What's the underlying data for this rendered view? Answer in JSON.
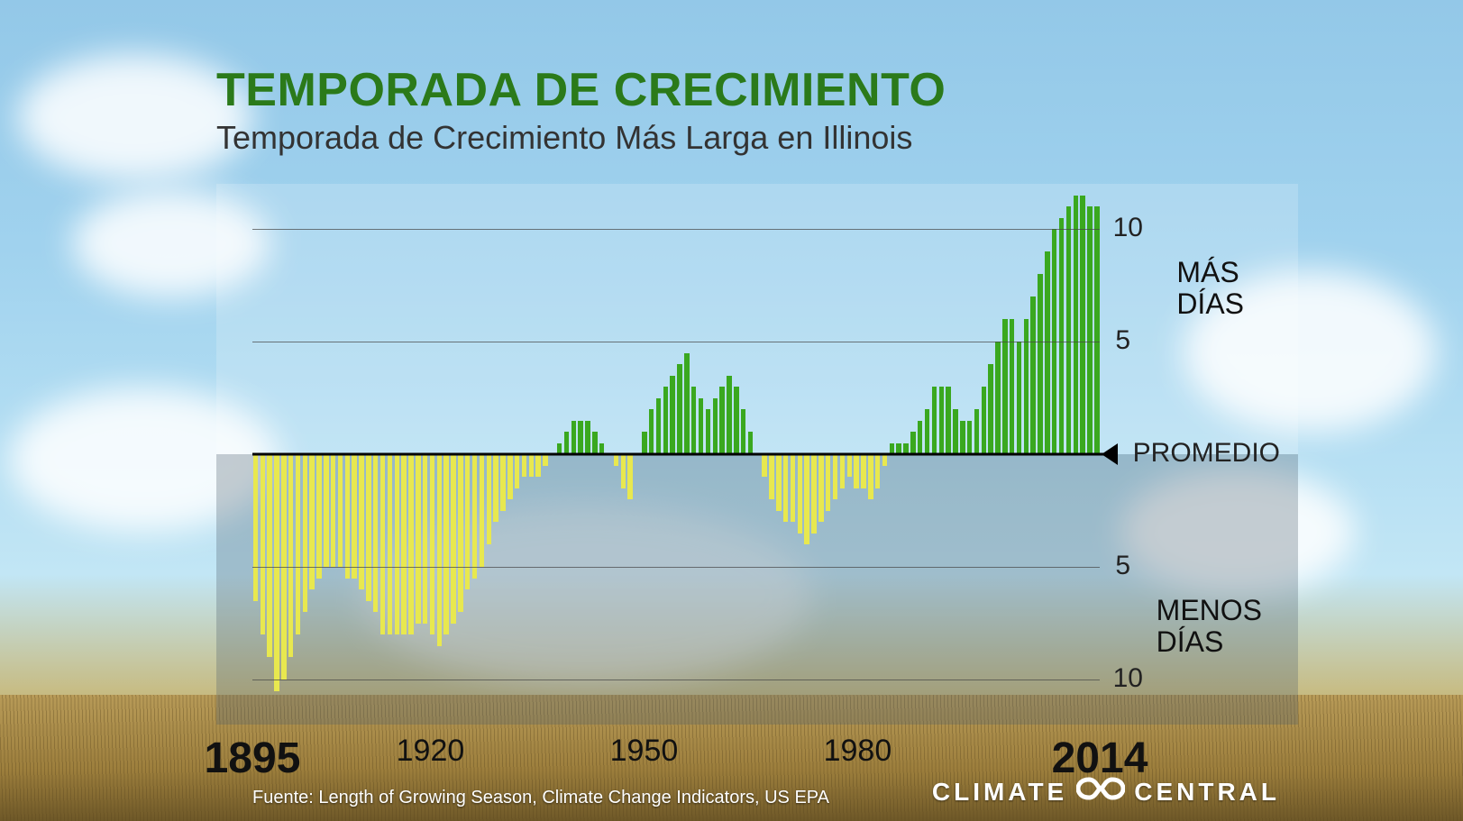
{
  "title": "TEMPORADA DE CRECIMIENTO",
  "subtitle": "Temporada de Crecimiento Más Larga en Illinois",
  "source": "Fuente: Length of Growing Season, Climate Change Indicators, US EPA",
  "brand_left": "CLIMATE",
  "brand_right": "CENTRAL",
  "chart": {
    "type": "bar",
    "y_axis": {
      "min": -12,
      "max": 12,
      "gridlines": [
        10,
        5,
        -5,
        -10
      ],
      "tick_labels_pos": [
        "10",
        "5"
      ],
      "tick_labels_neg": [
        "5",
        "10"
      ],
      "upper_label": "MÁS\nDÍAS",
      "lower_label": "MENOS\nDÍAS",
      "baseline_label": "PROMEDIO"
    },
    "x_axis": {
      "start_year": 1895,
      "end_year": 2014,
      "labels": [
        {
          "year": 1895,
          "text": "1895",
          "big": true
        },
        {
          "year": 1920,
          "text": "1920",
          "big": false
        },
        {
          "year": 1950,
          "text": "1950",
          "big": false
        },
        {
          "year": 1980,
          "text": "1980",
          "big": false
        },
        {
          "year": 2014,
          "text": "2014",
          "big": true
        }
      ]
    },
    "colors": {
      "positive_bar": "#3aa81f",
      "negative_bar": "#e8e84f",
      "title_color": "#2b7a1a",
      "subtitle_color": "#333333",
      "gridline_color": "#444444",
      "baseline_color": "#000000",
      "label_color": "#111111",
      "upper_panel_bg": "rgba(255,255,255,0.18)",
      "lower_panel_bg": "rgba(80,95,110,0.30)"
    },
    "typography": {
      "title_fontsize": 52,
      "subtitle_fontsize": 36,
      "ylabel_fontsize": 30,
      "ylabel_text_fontsize": 32,
      "xlabel_big_fontsize": 48,
      "xlabel_small_fontsize": 34,
      "source_fontsize": 20,
      "brand_fontsize": 28
    },
    "bar_width_ratio": 0.8,
    "values": [
      -6.5,
      -8.0,
      -9.0,
      -10.5,
      -10.0,
      -9.0,
      -8.0,
      -7.0,
      -6.0,
      -5.5,
      -5.0,
      -5.0,
      -5.0,
      -5.5,
      -5.5,
      -6.0,
      -6.5,
      -7.0,
      -8.0,
      -8.0,
      -8.0,
      -8.0,
      -8.0,
      -7.5,
      -7.5,
      -8.0,
      -8.5,
      -8.0,
      -7.5,
      -7.0,
      -6.0,
      -5.5,
      -5.0,
      -4.0,
      -3.0,
      -2.5,
      -2.0,
      -1.5,
      -1.0,
      -1.0,
      -1.0,
      -0.5,
      0.0,
      0.5,
      1.0,
      1.5,
      1.5,
      1.5,
      1.0,
      0.5,
      0.0,
      -0.5,
      -1.5,
      -2.0,
      0.0,
      1.0,
      2.0,
      2.5,
      3.0,
      3.5,
      4.0,
      4.5,
      3.0,
      2.5,
      2.0,
      2.5,
      3.0,
      3.5,
      3.0,
      2.0,
      1.0,
      0.0,
      -1.0,
      -2.0,
      -2.5,
      -3.0,
      -3.0,
      -3.5,
      -4.0,
      -3.5,
      -3.0,
      -2.5,
      -2.0,
      -1.5,
      -1.0,
      -1.5,
      -1.5,
      -2.0,
      -1.5,
      -0.5,
      0.5,
      0.5,
      0.5,
      1.0,
      1.5,
      2.0,
      3.0,
      3.0,
      3.0,
      2.0,
      1.5,
      1.5,
      2.0,
      3.0,
      4.0,
      5.0,
      6.0,
      6.0,
      5.0,
      6.0,
      7.0,
      8.0,
      9.0,
      10.0,
      10.5,
      11.0,
      11.5,
      11.5,
      11.0,
      11.0
    ]
  }
}
